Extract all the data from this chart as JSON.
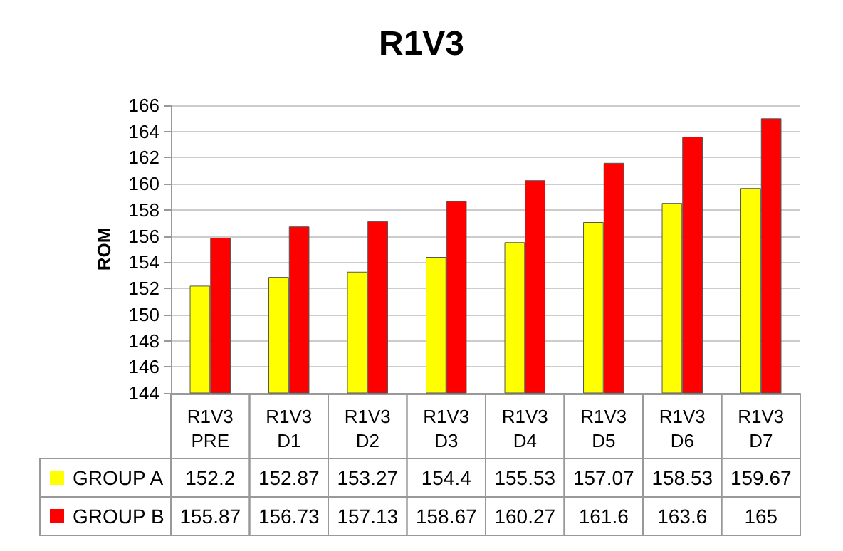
{
  "chart_data": {
    "type": "bar",
    "title": "R1V3",
    "ylabel": "ROM",
    "categories": [
      "R1V3\nPRE",
      "R1V3\nD1",
      "R1V3\nD2",
      "R1V3\nD3",
      "R1V3\nD4",
      "R1V3\nD5",
      "R1V3\nD6",
      "R1V3\nD7"
    ],
    "series": [
      {
        "name": "GROUP A",
        "color": "#ffff00",
        "values": [
          152.2,
          152.87,
          153.27,
          154.4,
          155.53,
          157.07,
          158.53,
          159.67
        ]
      },
      {
        "name": "GROUP B",
        "color": "#ff0000",
        "values": [
          155.87,
          156.73,
          157.13,
          158.67,
          160.27,
          161.6,
          163.6,
          165
        ]
      }
    ],
    "ylim": [
      144,
      166
    ],
    "yticks": [
      144,
      146,
      148,
      150,
      152,
      154,
      156,
      158,
      160,
      162,
      164,
      166
    ],
    "grid": "y",
    "legend": "bottom",
    "data_labels": true
  }
}
